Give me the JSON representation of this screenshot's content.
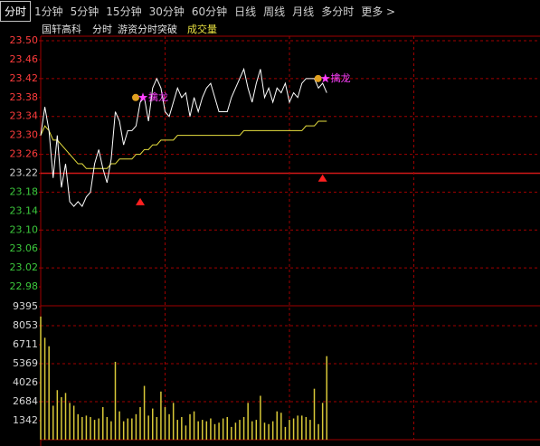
{
  "toolbar": {
    "tabs": [
      "分时",
      "1分钟",
      "5分钟",
      "15分钟",
      "30分钟",
      "60分钟",
      "日线",
      "周线",
      "月线",
      "多分时",
      "更多 >"
    ],
    "selected": 0
  },
  "chart_data": [
    {
      "type": "line",
      "title": "国轩高科",
      "labels": [
        "分时",
        "游资分时突破"
      ],
      "x": [
        0,
        2,
        4,
        6,
        8,
        10,
        12,
        14,
        16,
        18,
        20,
        22,
        24,
        26,
        28,
        30,
        32,
        34,
        36,
        38,
        40,
        42,
        44,
        46,
        48,
        50,
        52,
        54,
        56,
        58,
        60,
        62,
        64,
        66,
        68,
        70,
        72,
        74,
        76,
        78,
        80,
        82,
        84,
        86,
        88,
        90,
        92,
        94,
        96,
        98,
        100,
        102,
        104,
        106,
        108,
        110,
        112,
        114,
        116,
        118,
        120,
        122,
        124,
        126,
        128,
        130,
        132,
        134,
        136,
        138
      ],
      "xlim": [
        0,
        240
      ],
      "grid_x": [
        60,
        120,
        180
      ],
      "ylim": [
        22.94,
        23.5
      ],
      "yticks": [
        22.98,
        23.02,
        23.06,
        {
          "value": 23.1,
          "label": "23.10"
        },
        23.14,
        23.18,
        23.22,
        23.26,
        {
          "value": 23.3,
          "label": "23.30"
        },
        23.34,
        23.38,
        23.42,
        23.46,
        {
          "value": 23.5,
          "label": "23.50"
        }
      ],
      "series": [
        {
          "color": "#ffffff",
          "values": [
            23.3,
            23.36,
            23.31,
            23.21,
            23.3,
            23.19,
            23.24,
            23.16,
            23.15,
            23.16,
            23.15,
            23.17,
            23.18,
            23.24,
            23.27,
            23.23,
            23.2,
            23.25,
            23.35,
            23.33,
            23.28,
            23.31,
            23.31,
            23.32,
            23.37,
            23.38,
            23.33,
            23.4,
            23.42,
            23.4,
            23.35,
            23.34,
            23.37,
            23.4,
            23.38,
            23.39,
            23.34,
            23.38,
            23.35,
            23.38,
            23.4,
            23.41,
            23.38,
            23.35,
            23.35,
            23.35,
            23.38,
            23.4,
            23.42,
            23.44,
            23.4,
            23.37,
            23.41,
            23.44,
            23.38,
            23.4,
            23.37,
            23.4,
            23.39,
            23.41,
            23.37,
            23.39,
            23.38,
            23.41,
            23.42,
            23.42,
            23.42,
            23.4,
            23.41,
            23.39
          ]
        },
        {
          "color": "#e8e040",
          "values": [
            23.3,
            23.32,
            23.31,
            23.29,
            23.29,
            23.28,
            23.27,
            23.26,
            23.25,
            23.24,
            23.24,
            23.23,
            23.23,
            23.23,
            23.23,
            23.23,
            23.23,
            23.24,
            23.24,
            23.25,
            23.25,
            23.25,
            23.25,
            23.26,
            23.26,
            23.27,
            23.27,
            23.28,
            23.28,
            23.29,
            23.29,
            23.29,
            23.29,
            23.3,
            23.3,
            23.3,
            23.3,
            23.3,
            23.3,
            23.3,
            23.3,
            23.3,
            23.3,
            23.3,
            23.3,
            23.3,
            23.3,
            23.3,
            23.3,
            23.31,
            23.31,
            23.31,
            23.31,
            23.31,
            23.31,
            23.31,
            23.31,
            23.31,
            23.31,
            23.31,
            23.31,
            23.31,
            23.31,
            23.31,
            23.32,
            23.32,
            23.32,
            23.33,
            23.33,
            23.33
          ]
        }
      ],
      "annotations": [
        {
          "x": 48,
          "y": 23.38,
          "label": "擒龙"
        },
        {
          "x": 136,
          "y": 23.42,
          "label": "擒龙"
        }
      ],
      "signals": [
        {
          "x": 48,
          "y": 23.16
        },
        {
          "x": 136,
          "y": 23.21
        }
      ],
      "up_color": "#ff3c3c",
      "down_color": "#3cc83c",
      "grid_color": "#a00000"
    },
    {
      "type": "bar",
      "title": "成交量",
      "x": [
        0,
        2,
        4,
        6,
        8,
        10,
        12,
        14,
        16,
        18,
        20,
        22,
        24,
        26,
        28,
        30,
        32,
        34,
        36,
        38,
        40,
        42,
        44,
        46,
        48,
        50,
        52,
        54,
        56,
        58,
        60,
        62,
        64,
        66,
        68,
        70,
        72,
        74,
        76,
        78,
        80,
        82,
        84,
        86,
        88,
        90,
        92,
        94,
        96,
        98,
        100,
        102,
        104,
        106,
        108,
        110,
        112,
        114,
        116,
        118,
        120,
        122,
        124,
        126,
        128,
        130,
        132,
        134,
        136,
        138
      ],
      "xlim": [
        0,
        240
      ],
      "values": [
        8700,
        7200,
        6600,
        2400,
        3500,
        3000,
        3300,
        2600,
        2400,
        1800,
        1600,
        1700,
        1600,
        1400,
        1500,
        2300,
        1600,
        1300,
        5500,
        2000,
        1300,
        1500,
        1500,
        1800,
        2300,
        3800,
        1700,
        2200,
        1600,
        3400,
        2300,
        1800,
        2600,
        1400,
        1600,
        1000,
        1800,
        2000,
        1300,
        1400,
        1300,
        1500,
        1100,
        1200,
        1500,
        1600,
        900,
        1200,
        1400,
        1600,
        2600,
        1300,
        1400,
        3100,
        1200,
        1100,
        1300,
        2000,
        1900,
        900,
        1400,
        1500,
        1700,
        1700,
        1600,
        1400,
        3600,
        1100,
        2600,
        5900
      ],
      "color": "#d8c838",
      "ylim": [
        0,
        9395
      ],
      "yticks": [
        1342,
        2684,
        4026,
        5369,
        6711,
        8053,
        9395
      ]
    }
  ]
}
